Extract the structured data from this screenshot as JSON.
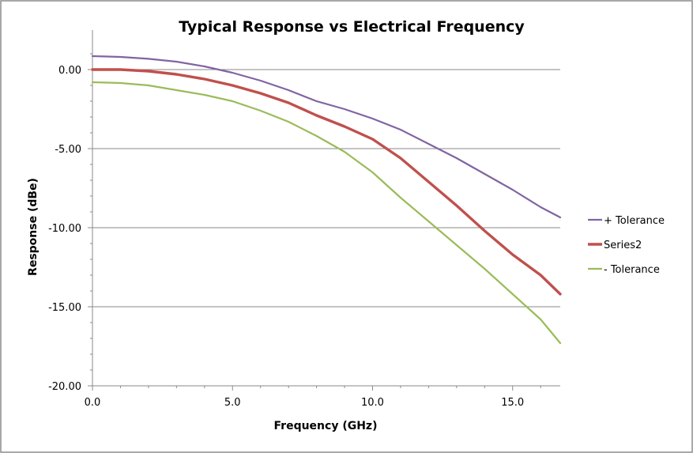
{
  "chart_data": {
    "type": "line",
    "title": "Typical Response vs Electrical Frequency",
    "xlabel": "Frequency (GHz)",
    "ylabel": "Response (dBe)",
    "xlim": [
      0,
      16.7
    ],
    "ylim": [
      -20,
      1.5
    ],
    "x_ticks": [
      "0.0",
      "5.0",
      "10.0",
      "15.0"
    ],
    "x_tick_values": [
      0,
      5,
      10,
      15
    ],
    "y_ticks": [
      "0.00",
      "-5.00",
      "-10.00",
      "-15.00",
      "-20.00"
    ],
    "y_tick_values": [
      0,
      -5,
      -10,
      -15,
      -20
    ],
    "grid": "horizontal",
    "legend_position": "right",
    "series": [
      {
        "name": "+ Tolerance",
        "color": "#8064a2",
        "x": [
          0,
          1,
          2,
          3,
          4,
          5,
          6,
          7,
          8,
          9,
          10,
          11,
          12,
          13,
          14,
          15,
          16,
          16.7
        ],
        "y": [
          0.85,
          0.8,
          0.68,
          0.5,
          0.2,
          -0.2,
          -0.7,
          -1.3,
          -2.0,
          -2.5,
          -3.1,
          -3.8,
          -4.7,
          -5.6,
          -6.6,
          -7.6,
          -8.7,
          -9.35
        ]
      },
      {
        "name": "Series2",
        "color": "#c0504d",
        "x": [
          0,
          1,
          2,
          3,
          4,
          5,
          6,
          7,
          8,
          9,
          10,
          11,
          12,
          13,
          14,
          15,
          16,
          16.7
        ],
        "y": [
          0.0,
          0.0,
          -0.1,
          -0.3,
          -0.6,
          -1.0,
          -1.5,
          -2.1,
          -2.9,
          -3.6,
          -4.4,
          -5.6,
          -7.1,
          -8.6,
          -10.2,
          -11.7,
          -13.0,
          -14.2
        ]
      },
      {
        "name": "- Tolerance",
        "color": "#9bbb59",
        "x": [
          0,
          1,
          2,
          3,
          4,
          5,
          6,
          7,
          8,
          9,
          10,
          11,
          12,
          13,
          14,
          15,
          16,
          16.7
        ],
        "y": [
          -0.8,
          -0.85,
          -1.0,
          -1.3,
          -1.6,
          -2.0,
          -2.6,
          -3.3,
          -4.2,
          -5.2,
          -6.5,
          -8.1,
          -9.6,
          -11.1,
          -12.6,
          -14.2,
          -15.8,
          -17.3
        ]
      }
    ]
  }
}
